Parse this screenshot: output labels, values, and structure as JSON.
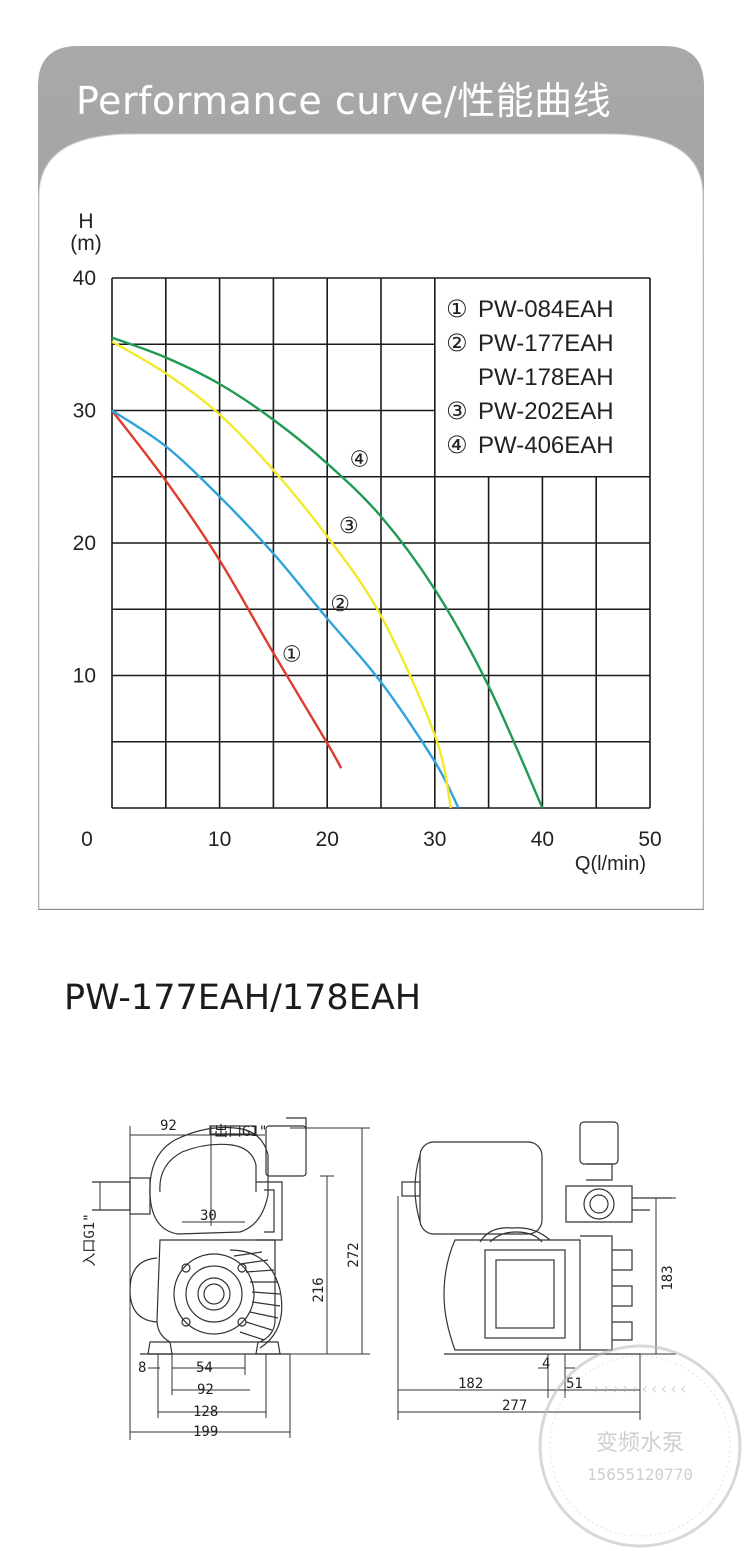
{
  "header": {
    "title": "Performance curve/性能曲线"
  },
  "chart_data": {
    "type": "line",
    "title": "Performance curve/性能曲线",
    "xlabel": "Q(l/min)",
    "ylabel_top": "H",
    "ylabel_unit": "(m)",
    "xlim": [
      0,
      50
    ],
    "ylim": [
      0,
      40
    ],
    "x_ticks": [
      "0",
      "10",
      "20",
      "30",
      "40",
      "50"
    ],
    "y_ticks": [
      "10",
      "20",
      "30",
      "40"
    ],
    "grid": true,
    "legend_position": "top-right",
    "legend": [
      {
        "marker": "①",
        "lines": [
          "PW-084EAH"
        ]
      },
      {
        "marker": "②",
        "lines": [
          "PW-177EAH",
          "PW-178EAH"
        ]
      },
      {
        "marker": "③",
        "lines": [
          "PW-202EAH"
        ]
      },
      {
        "marker": "④",
        "lines": [
          "PW-406EAH"
        ]
      }
    ],
    "series": [
      {
        "marker": "①",
        "color": "#e03a2e",
        "x": [
          0,
          5,
          10,
          15,
          20,
          21.3
        ],
        "y": [
          30,
          24.7,
          18.7,
          11.7,
          4.9,
          3
        ]
      },
      {
        "marker": "②",
        "color": "#2ea3dc",
        "x": [
          0,
          5,
          10,
          15,
          20,
          25,
          30,
          32.2
        ],
        "y": [
          30,
          27.3,
          23.5,
          19.2,
          14.3,
          9.5,
          3.5,
          0
        ]
      },
      {
        "marker": "③",
        "color": "#f3e92c",
        "x": [
          0,
          5,
          10,
          15,
          20,
          25,
          30,
          31.5
        ],
        "y": [
          35.2,
          32.8,
          29.7,
          25.5,
          20.5,
          14.5,
          5.5,
          0
        ]
      },
      {
        "marker": "④",
        "color": "#1f9a52",
        "x": [
          0,
          5,
          10,
          15,
          20,
          25,
          30,
          35,
          40
        ],
        "y": [
          35.5,
          34,
          32,
          29.3,
          26,
          22,
          16.5,
          9.2,
          0
        ]
      }
    ]
  },
  "drawing": {
    "model_title": "PW-177EAH/178EAH",
    "front_view": {
      "outlet_label": "出口G1\"",
      "inlet_label": "入口G1\"",
      "dims": [
        "92",
        "30",
        "216",
        "272",
        "8",
        "54",
        "92",
        "128",
        "199"
      ]
    },
    "side_view": {
      "dims": [
        "183",
        "4",
        "182",
        "51",
        "277"
      ]
    },
    "watermark": {
      "text": "变频水泵",
      "phone": "15655120770"
    }
  }
}
